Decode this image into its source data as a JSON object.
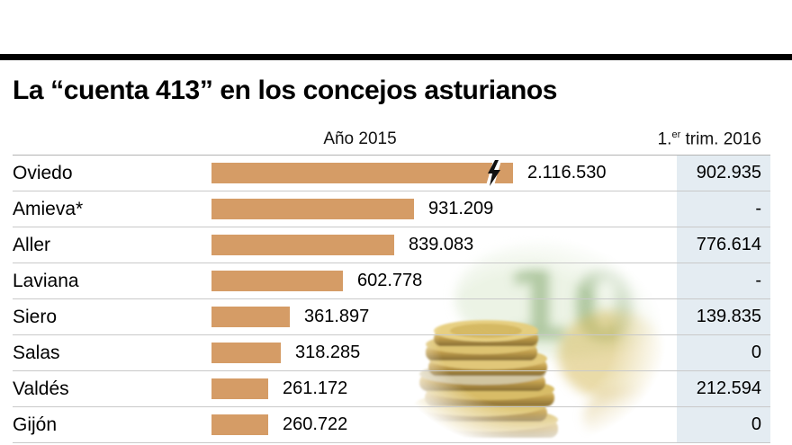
{
  "meta": {
    "title": "La “cuenta 413” en los concejos asturianos"
  },
  "header": {
    "col_2015": "Año 2015",
    "col_2016": {
      "prefix": "1.",
      "sup": "er",
      "rest": " trim. 2016"
    }
  },
  "chart_data": {
    "type": "bar",
    "orientation": "horizontal",
    "title": "La “cuenta 413” en los concejos asturianos",
    "categories": [
      "Oviedo",
      "Amieva*",
      "Aller",
      "Laviana",
      "Siero",
      "Salas",
      "Valdés",
      "Gijón"
    ],
    "series": [
      {
        "name": "Año 2015",
        "values": [
          2116530,
          931209,
          839083,
          602778,
          361897,
          318285,
          261172,
          260722
        ],
        "labels": [
          "2.116.530",
          "931.209",
          "839.083",
          "602.778",
          "361.897",
          "318.285",
          "261.172",
          "260.722"
        ]
      },
      {
        "name": "1.er trim. 2016",
        "values": [
          902935,
          null,
          776614,
          null,
          139835,
          0,
          212594,
          0
        ],
        "labels": [
          "902.935",
          "-",
          "776.614",
          "-",
          "139.835",
          "0",
          "212.594",
          "0"
        ]
      }
    ],
    "bar_color": "#d59c66",
    "highlight_column_bg": "#e2ebf1",
    "truncated_bar_category": "Oviedo",
    "truncation_symbol": "lightning-bolt",
    "grid": false,
    "legend": "none"
  },
  "decor": {
    "photo": "stacked-euro-coins-with-blurred-10-euro-note",
    "note_digits": "10"
  }
}
